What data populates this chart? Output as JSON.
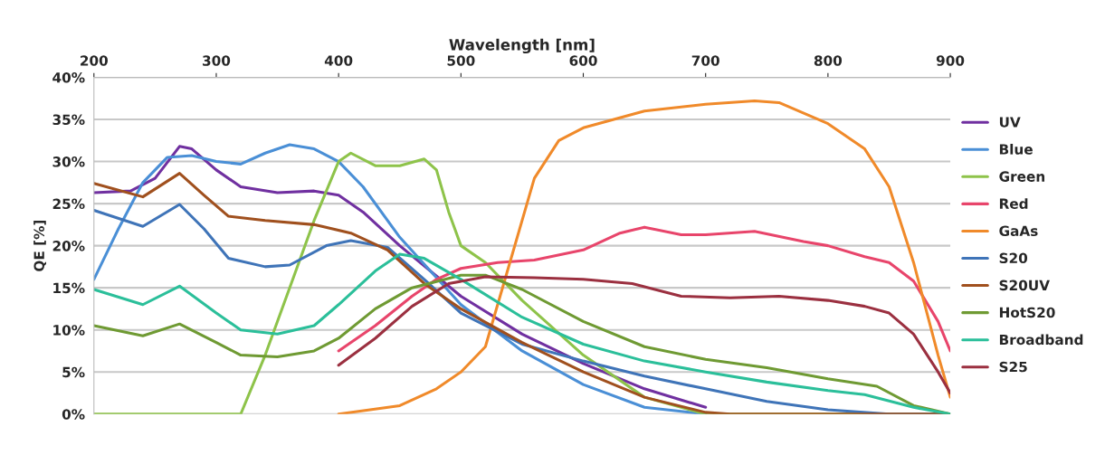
{
  "chart_data": {
    "type": "line",
    "xlabel": "Wavelength [nm]",
    "ylabel": "QE [%]",
    "xlim": [
      200,
      900
    ],
    "xticks": [
      200,
      300,
      400,
      500,
      600,
      700,
      800,
      900
    ],
    "ylim": [
      0,
      40
    ],
    "yticks": [
      {
        "value": 0,
        "label": "0%"
      },
      {
        "value": 5,
        "label": "5%"
      },
      {
        "value": 10,
        "label": "10%"
      },
      {
        "value": 15,
        "label": "15%"
      },
      {
        "value": 20,
        "label": "20%"
      },
      {
        "value": 25,
        "label": "25%"
      },
      {
        "value": 30,
        "label": "30%"
      },
      {
        "value": 35,
        "label": "35%"
      },
      {
        "value": 40,
        "label": "40%"
      }
    ],
    "grid": "y",
    "legend": "right",
    "marker": "none",
    "line_style": "solid",
    "series": [
      {
        "name": "UV",
        "color": "#7030a0",
        "x": [
          200,
          230,
          250,
          270,
          280,
          300,
          320,
          350,
          380,
          400,
          420,
          450,
          500,
          550,
          600,
          650,
          700
        ],
        "values": [
          26.3,
          26.5,
          28,
          31.8,
          31.5,
          29,
          27,
          26.3,
          26.5,
          26,
          24,
          20,
          14,
          9.5,
          6,
          3,
          0.8
        ]
      },
      {
        "name": "Blue",
        "color": "#4a8fd6",
        "x": [
          200,
          220,
          240,
          260,
          280,
          300,
          320,
          340,
          360,
          380,
          400,
          420,
          450,
          500,
          550,
          600,
          650,
          700
        ],
        "values": [
          16,
          22,
          27.5,
          30.5,
          30.7,
          30,
          29.7,
          31,
          32,
          31.5,
          30,
          27,
          21,
          13,
          7.5,
          3.5,
          0.8,
          0
        ]
      },
      {
        "name": "Green",
        "color": "#8ec34a",
        "x": [
          200,
          320,
          340,
          360,
          380,
          400,
          410,
          430,
          450,
          470,
          480,
          490,
          500,
          520,
          550,
          600,
          650,
          700,
          900
        ],
        "values": [
          0,
          0,
          7,
          15,
          23,
          30,
          31,
          29.5,
          29.5,
          30.3,
          29,
          24,
          20,
          18,
          13.5,
          7,
          2,
          0,
          0
        ]
      },
      {
        "name": "Red",
        "color": "#e8456b",
        "x": [
          400,
          430,
          460,
          480,
          500,
          530,
          560,
          600,
          630,
          650,
          680,
          700,
          740,
          780,
          800,
          830,
          850,
          870,
          890,
          900
        ],
        "values": [
          7.5,
          10.5,
          14,
          16,
          17.3,
          18,
          18.3,
          19.5,
          21.5,
          22.2,
          21.3,
          21.3,
          21.7,
          20.5,
          20,
          18.7,
          18,
          15.8,
          11,
          7.5
        ]
      },
      {
        "name": "GaAs",
        "color": "#f08a2a",
        "x": [
          400,
          450,
          480,
          500,
          520,
          540,
          560,
          580,
          600,
          650,
          700,
          740,
          760,
          800,
          830,
          850,
          870,
          890,
          900
        ],
        "values": [
          0,
          1,
          3,
          5,
          8,
          18,
          28,
          32.5,
          34,
          36,
          36.8,
          37.2,
          37,
          34.5,
          31.5,
          27,
          18,
          7,
          2
        ]
      },
      {
        "name": "S20",
        "color": "#3f74b8",
        "x": [
          200,
          240,
          270,
          290,
          310,
          340,
          360,
          390,
          410,
          440,
          470,
          500,
          550,
          600,
          650,
          700,
          750,
          800,
          850,
          900
        ],
        "values": [
          24.2,
          22.3,
          24.9,
          22,
          18.5,
          17.5,
          17.7,
          20,
          20.6,
          19.8,
          16,
          12,
          8.3,
          6.3,
          4.5,
          3,
          1.5,
          0.5,
          0,
          0
        ]
      },
      {
        "name": "S20UV",
        "color": "#a0501e",
        "x": [
          200,
          240,
          270,
          290,
          310,
          340,
          380,
          410,
          440,
          470,
          500,
          550,
          600,
          650,
          700,
          720,
          900
        ],
        "values": [
          27.4,
          25.8,
          28.6,
          26,
          23.5,
          23,
          22.5,
          21.5,
          19.5,
          15.5,
          12.5,
          8.5,
          5,
          2,
          0.2,
          0,
          0
        ]
      },
      {
        "name": "HotS20",
        "color": "#6f9a33",
        "x": [
          200,
          240,
          270,
          300,
          320,
          350,
          380,
          400,
          430,
          460,
          500,
          520,
          550,
          600,
          650,
          700,
          750,
          800,
          840,
          870,
          900
        ],
        "values": [
          10.5,
          9.3,
          10.7,
          8.5,
          7,
          6.8,
          7.5,
          9,
          12.5,
          15,
          16.5,
          16.5,
          14.8,
          11,
          8,
          6.5,
          5.5,
          4.2,
          3.3,
          1,
          0
        ]
      },
      {
        "name": "Broadband",
        "color": "#2bbf9a",
        "x": [
          200,
          240,
          270,
          300,
          320,
          350,
          380,
          400,
          430,
          450,
          470,
          500,
          550,
          600,
          650,
          700,
          750,
          800,
          830,
          870,
          900
        ],
        "values": [
          14.8,
          13,
          15.2,
          12,
          10,
          9.5,
          10.5,
          13,
          17,
          19,
          18.5,
          16,
          11.5,
          8.3,
          6.3,
          5,
          3.8,
          2.8,
          2.3,
          0.8,
          0
        ]
      },
      {
        "name": "S25",
        "color": "#9b3040",
        "x": [
          400,
          430,
          460,
          490,
          520,
          560,
          600,
          640,
          680,
          720,
          760,
          800,
          830,
          850,
          870,
          890,
          900
        ],
        "values": [
          5.8,
          9,
          12.8,
          15.5,
          16.3,
          16.2,
          16,
          15.5,
          14,
          13.8,
          14,
          13.5,
          12.8,
          12,
          9.5,
          5,
          2.5
        ]
      }
    ]
  }
}
